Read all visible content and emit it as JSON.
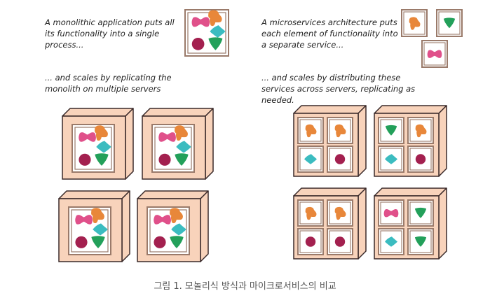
{
  "monolith": {
    "description": "A monolithic application puts all its functionality into a single process...",
    "scaling": "... and scales by replicating the monolith on multiple servers"
  },
  "microservices": {
    "description": "A microservices architecture puts each element of functionality into a separate service...",
    "scaling": "... and scales by distributing these services across servers, replicating as needed."
  },
  "caption": "그림 1. 모놀리식 방식과 마이크로서비스의 비교",
  "colors": {
    "orange_blob": "#e8873a",
    "pink_bow": "#e0508a",
    "teal_diamond": "#3bbcc0",
    "maroon_circle": "#a3204f",
    "green_triangle": "#23a05a",
    "box_fill": "#f8d3bb",
    "box_stroke": "#3a2a2a",
    "frame_stroke": "#9a7a6a"
  }
}
